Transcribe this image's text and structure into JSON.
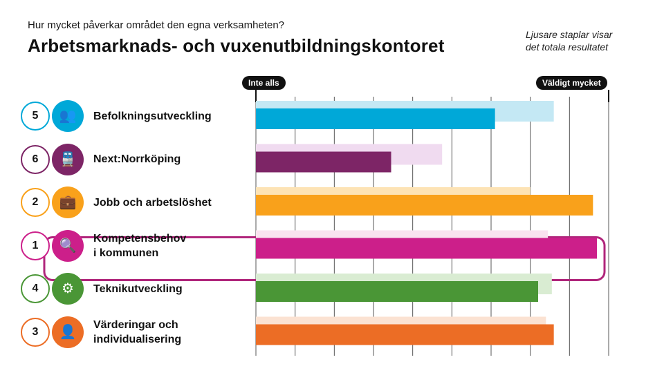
{
  "header": {
    "question": "Hur mycket påverkar området den egna verksamheten?",
    "title": "Arbetsmarknads- och vuxenutbildningskontoret",
    "note_line1": "Ljusare staplar visar",
    "note_line2": "det totala resultatet"
  },
  "scale": {
    "min_label": "Inte alls",
    "max_label": "Väldigt mycket"
  },
  "highlighted_row": "Kompetensbehov i kommunen",
  "chart_data": {
    "type": "bar",
    "orientation": "horizontal",
    "xlim": [
      0,
      9
    ],
    "scale_labels": [
      "Inte alls",
      "Väldigt mycket"
    ],
    "grid": true,
    "categories": [
      {
        "rank": "5",
        "lines": [
          "Befolkningsutveckling"
        ],
        "icon": "people-group-icon",
        "color": "#00a8d8",
        "light": "#c4e8f4"
      },
      {
        "rank": "6",
        "lines": [
          "Next:Norrköping"
        ],
        "icon": "train-icon",
        "color": "#7d2566",
        "light": "#f0dbf0"
      },
      {
        "rank": "2",
        "lines": [
          "Jobb och arbetslöshet"
        ],
        "icon": "briefcase-icon",
        "color": "#f9a11b",
        "light": "#fde3b5"
      },
      {
        "rank": "1",
        "lines": [
          "Kompetensbehov",
          "i kommunen"
        ],
        "icon": "person-search-icon",
        "color": "#cc1f8a",
        "light": "#f9e2ef"
      },
      {
        "rank": "4",
        "lines": [
          "Teknikutveckling"
        ],
        "icon": "gear-icon",
        "color": "#4a9636",
        "light": "#d9ecd2"
      },
      {
        "rank": "3",
        "lines": [
          "Värderingar och",
          "individualisering"
        ],
        "icon": "person-icon",
        "color": "#ec6d25",
        "light": "#fbe2d2"
      }
    ],
    "series": [
      {
        "name": "Arbetsmarknads- och vuxenutbildningskontoret",
        "values": [
          6.1,
          3.45,
          8.6,
          8.7,
          7.2,
          7.6
        ]
      },
      {
        "name": "det totala resultatet",
        "values": [
          7.6,
          4.75,
          7.0,
          7.45,
          7.55,
          7.4
        ]
      }
    ]
  }
}
